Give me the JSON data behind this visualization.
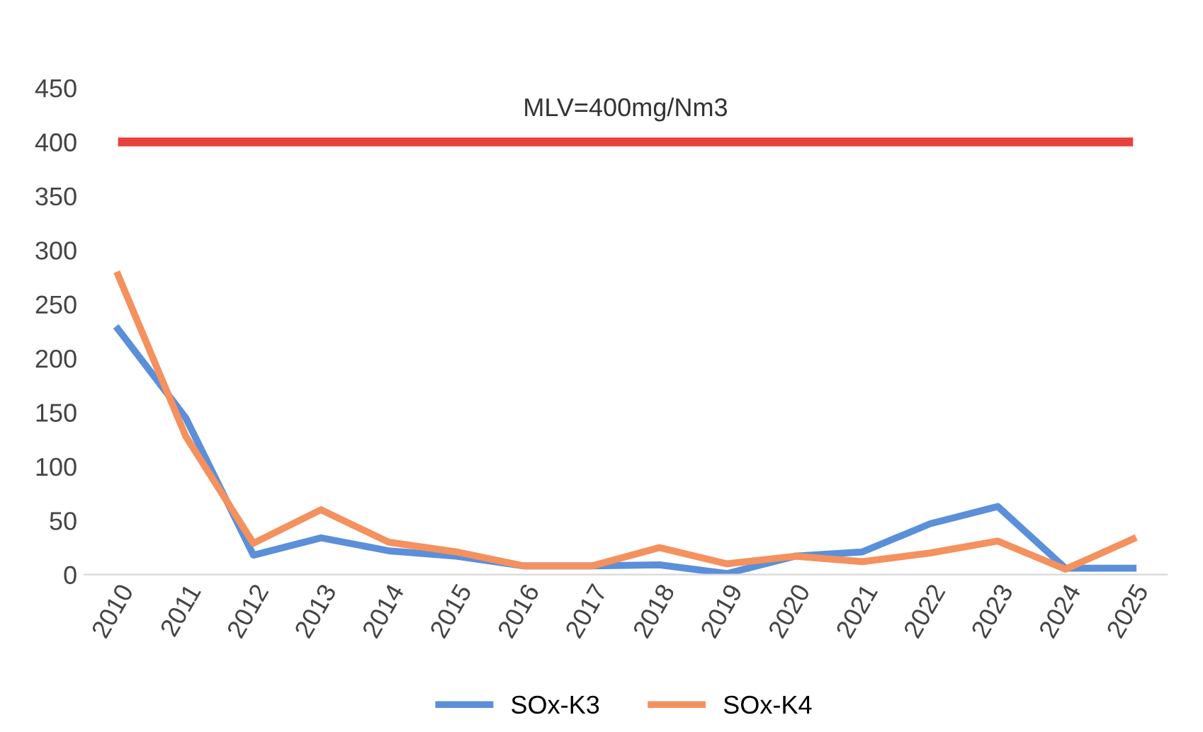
{
  "chart_data": {
    "type": "line",
    "categories": [
      "2010",
      "2011",
      "2012",
      "2013",
      "2014",
      "2015",
      "2016",
      "2017",
      "2018",
      "2019",
      "2020",
      "2021",
      "2022",
      "2023",
      "2024",
      "2025"
    ],
    "series": [
      {
        "name": "SOx-K3",
        "color": "#5b8fd9",
        "values": [
          227,
          145,
          18,
          34,
          22,
          17,
          8,
          8,
          9,
          1,
          17,
          21,
          47,
          63,
          6,
          6
        ]
      },
      {
        "name": "SOx-K4",
        "color": "#f4915e",
        "values": [
          277,
          128,
          29,
          60,
          30,
          21,
          8,
          8,
          25,
          10,
          17,
          12,
          20,
          31,
          5,
          33
        ]
      }
    ],
    "ref_lines": [
      {
        "axis": "y",
        "value": 400,
        "label": "MLV=400mg/Nm3",
        "color": "#e8413c"
      }
    ],
    "ylim": [
      0,
      450
    ],
    "yticks": [
      0,
      50,
      100,
      150,
      200,
      250,
      300,
      350,
      400,
      450
    ],
    "grid": false,
    "legend": "bottom",
    "marker": "none",
    "line_style": "solid"
  }
}
